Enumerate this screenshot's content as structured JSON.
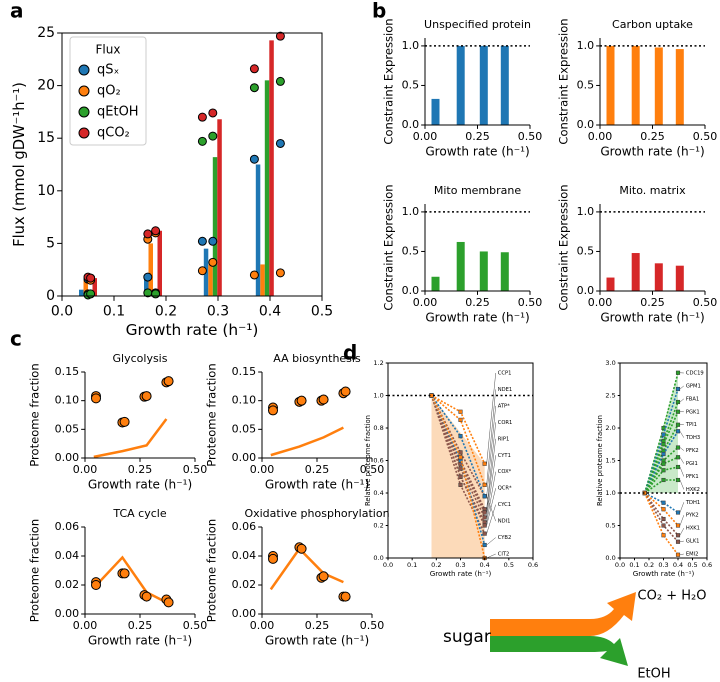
{
  "panel_labels": [
    "a",
    "b",
    "c",
    "d"
  ],
  "diagram": {
    "input": "sugar",
    "outputs": [
      "CO₂ + H₂O",
      "EtOH"
    ]
  },
  "chart_data": [
    {
      "type": "bar",
      "xlabel": "Growth rate (h⁻¹)",
      "ylabel": "Flux (mmol gDW⁻¹h⁻¹)",
      "legend_title": "Flux",
      "legend": "upper left",
      "x": [
        0.05,
        0.175,
        0.29,
        0.39
      ],
      "xlim": [
        0,
        0.5
      ],
      "xticks": [
        {
          "value": 0,
          "label": "0.0"
        },
        0.1,
        0.2,
        0.3,
        0.4,
        0.5
      ],
      "ylim": [
        0,
        25
      ],
      "yticks": [
        0,
        5,
        10,
        15,
        20,
        25
      ],
      "series": [
        {
          "name": "qSₓ",
          "color": "#1f77b4",
          "values": [
            0.6,
            1.8,
            4.5,
            12.5
          ],
          "points_x": [
            0.05,
            0.055,
            0.165,
            0.18,
            0.27,
            0.29,
            0.37,
            0.42
          ],
          "points_y": [
            1.6,
            1.7,
            1.8,
            0.3,
            5.2,
            5.2,
            13.0,
            14.5
          ]
        },
        {
          "name": "qO₂",
          "color": "#ff7f0e",
          "values": [
            1.5,
            5.0,
            3.0,
            3.0
          ],
          "points_x": [
            0.05,
            0.055,
            0.165,
            0.18,
            0.27,
            0.29,
            0.37,
            0.42
          ],
          "points_y": [
            0.2,
            1.5,
            5.4,
            6.0,
            2.4,
            3.2,
            2.0,
            2.2
          ]
        },
        {
          "name": "qEtOH",
          "color": "#2ca02c",
          "values": [
            0.1,
            0.2,
            13.2,
            20.5
          ],
          "points_x": [
            0.05,
            0.055,
            0.165,
            0.18,
            0.27,
            0.29,
            0.37,
            0.42
          ],
          "points_y": [
            0.1,
            0.2,
            0.3,
            0.2,
            14.7,
            15.2,
            19.8,
            20.4
          ]
        },
        {
          "name": "qCO₂",
          "color": "#d62728",
          "values": [
            1.7,
            6.2,
            16.8,
            24.3
          ],
          "points_x": [
            0.05,
            0.055,
            0.165,
            0.18,
            0.27,
            0.29,
            0.37,
            0.42
          ],
          "points_y": [
            1.8,
            1.7,
            5.9,
            6.2,
            17.0,
            17.4,
            21.6,
            24.7
          ]
        }
      ]
    },
    {
      "type": "bar",
      "title": "Unspecified protein",
      "xlabel": "Growth rate (h⁻¹)",
      "ylabel": "Constraint Expression",
      "x": [
        0.05,
        0.17,
        0.28,
        0.38
      ],
      "values": [
        0.33,
        1.0,
        1.0,
        1.0
      ],
      "color": "#1f77b4",
      "xlim": [
        0,
        0.5
      ],
      "xticks": [
        {
          "value": 0,
          "label": "0.00"
        },
        0.25,
        {
          "value": 0.5,
          "label": "0.50"
        }
      ],
      "ylim": [
        0,
        1.1
      ],
      "yticks": [
        {
          "value": 0,
          "label": "0.0"
        },
        0.5,
        {
          "value": 1,
          "label": "1.0"
        }
      ],
      "hline": 1
    },
    {
      "type": "bar",
      "title": "Carbon uptake",
      "xlabel": "Growth rate (h⁻¹)",
      "ylabel": "Constraint Expression",
      "x": [
        0.05,
        0.17,
        0.28,
        0.38
      ],
      "values": [
        1.0,
        1.0,
        0.98,
        0.96
      ],
      "color": "#ff7f0e",
      "xlim": [
        0,
        0.5
      ],
      "xticks": [
        {
          "value": 0,
          "label": "0.00"
        },
        0.25,
        {
          "value": 0.5,
          "label": "0.50"
        }
      ],
      "ylim": [
        0,
        1.1
      ],
      "yticks": [
        {
          "value": 0,
          "label": "0.0"
        },
        0.5,
        {
          "value": 1,
          "label": "1.0"
        }
      ],
      "hline": 1
    },
    {
      "type": "bar",
      "title": "Mito  membrane",
      "xlabel": "Growth rate (h⁻¹)",
      "ylabel": "Constraint Expression",
      "x": [
        0.05,
        0.17,
        0.28,
        0.38
      ],
      "values": [
        0.18,
        0.62,
        0.5,
        0.49
      ],
      "color": "#2ca02c",
      "xlim": [
        0,
        0.5
      ],
      "xticks": [
        {
          "value": 0,
          "label": "0.00"
        },
        0.25,
        {
          "value": 0.5,
          "label": "0.50"
        }
      ],
      "ylim": [
        0,
        1.1
      ],
      "yticks": [
        {
          "value": 0,
          "label": "0.0"
        },
        0.5,
        {
          "value": 1,
          "label": "1.0"
        }
      ],
      "hline": 1
    },
    {
      "type": "bar",
      "title": "Mito. matrix",
      "xlabel": "Growth rate (h⁻¹)",
      "ylabel": "Constraint Expression",
      "x": [
        0.05,
        0.17,
        0.28,
        0.38
      ],
      "values": [
        0.17,
        0.48,
        0.35,
        0.32
      ],
      "color": "#d62728",
      "xlim": [
        0,
        0.5
      ],
      "xticks": [
        {
          "value": 0,
          "label": "0.00"
        },
        0.25,
        {
          "value": 0.5,
          "label": "0.50"
        }
      ],
      "ylim": [
        0,
        1.1
      ],
      "yticks": [
        {
          "value": 0,
          "label": "0.0"
        },
        0.5,
        {
          "value": 1,
          "label": "1.0"
        }
      ],
      "hline": 1
    },
    {
      "type": "line",
      "title": "Glycolysis",
      "xlabel": "Growth rate (h⁻¹)",
      "ylabel": "Proteome fraction",
      "x": [
        0.04,
        0.17,
        0.28,
        0.37
      ],
      "values": [
        0.002,
        0.012,
        0.022,
        0.068
      ],
      "color": "#ff7f0e",
      "points_x": [
        0.05,
        0.05,
        0.17,
        0.18,
        0.27,
        0.28,
        0.37,
        0.38
      ],
      "points_y": [
        0.108,
        0.104,
        0.062,
        0.063,
        0.107,
        0.108,
        0.132,
        0.134
      ],
      "xlim": [
        0,
        0.5
      ],
      "xticks": [
        {
          "value": 0,
          "label": "0.00"
        },
        0.25,
        {
          "value": 0.5,
          "label": "0.50"
        }
      ],
      "ylim": [
        0,
        0.15
      ],
      "yticks": [
        {
          "value": 0,
          "label": "0.00"
        },
        0.05,
        {
          "value": 0.1,
          "label": "0.10"
        },
        0.15
      ]
    },
    {
      "type": "line",
      "title": "AA biosynthesis",
      "xlabel": "Growth rate (h⁻¹)",
      "ylabel": "Proteome fraction",
      "x": [
        0.04,
        0.17,
        0.28,
        0.37
      ],
      "values": [
        0.005,
        0.02,
        0.036,
        0.053
      ],
      "color": "#ff7f0e",
      "points_x": [
        0.05,
        0.05,
        0.17,
        0.18,
        0.27,
        0.28,
        0.37,
        0.38
      ],
      "points_y": [
        0.088,
        0.083,
        0.098,
        0.1,
        0.1,
        0.102,
        0.113,
        0.116
      ],
      "xlim": [
        0,
        0.5
      ],
      "xticks": [
        {
          "value": 0,
          "label": "0.00"
        },
        0.25,
        {
          "value": 0.5,
          "label": "0.50"
        }
      ],
      "ylim": [
        0,
        0.15
      ],
      "yticks": [
        {
          "value": 0,
          "label": "0.00"
        },
        0.05,
        {
          "value": 0.1,
          "label": "0.10"
        },
        0.15
      ]
    },
    {
      "type": "line",
      "title": "TCA cycle",
      "xlabel": "Growth rate (h⁻¹)",
      "ylabel": "Proteome fraction",
      "x": [
        0.04,
        0.17,
        0.28,
        0.37
      ],
      "values": [
        0.018,
        0.039,
        0.015,
        0.008
      ],
      "color": "#ff7f0e",
      "points_x": [
        0.05,
        0.05,
        0.17,
        0.18,
        0.27,
        0.28,
        0.37,
        0.38
      ],
      "points_y": [
        0.022,
        0.02,
        0.028,
        0.028,
        0.013,
        0.012,
        0.01,
        0.008
      ],
      "xlim": [
        0,
        0.5
      ],
      "xticks": [
        {
          "value": 0,
          "label": "0.00"
        },
        0.25,
        {
          "value": 0.5,
          "label": "0.50"
        }
      ],
      "ylim": [
        0,
        0.06
      ],
      "yticks": [
        {
          "value": 0,
          "label": "0.00"
        },
        0.02,
        0.04,
        0.06
      ]
    },
    {
      "type": "line",
      "title": "Oxidative phosphorylation",
      "xlabel": "Growth rate (h⁻¹)",
      "ylabel": "Proteome fraction",
      "x": [
        0.04,
        0.17,
        0.28,
        0.37
      ],
      "values": [
        0.017,
        0.045,
        0.028,
        0.022
      ],
      "color": "#ff7f0e",
      "points_x": [
        0.05,
        0.05,
        0.17,
        0.18,
        0.27,
        0.28,
        0.37,
        0.38
      ],
      "points_y": [
        0.04,
        0.038,
        0.046,
        0.045,
        0.025,
        0.026,
        0.012,
        0.012
      ],
      "xlim": [
        0,
        0.5
      ],
      "xticks": [
        {
          "value": 0,
          "label": "0.00"
        },
        0.25,
        {
          "value": 0.5,
          "label": "0.50"
        }
      ],
      "ylim": [
        0,
        0.06
      ],
      "yticks": [
        {
          "value": 0,
          "label": "0.00"
        },
        0.02,
        0.04,
        0.06
      ]
    },
    {
      "type": "line",
      "xlabel": "Growth rate (h⁻¹)",
      "ylabel": "Relative proteome fraction",
      "x": [
        0.18,
        0.3,
        0.4
      ],
      "xlim": [
        0,
        0.6
      ],
      "xticks": [
        {
          "value": 0,
          "label": "0.0"
        },
        0.1,
        0.2,
        0.3,
        0.4,
        0.5,
        0.6
      ],
      "ylim": [
        0,
        1.2
      ],
      "yticks": [
        {
          "value": 0,
          "label": "0.0"
        },
        0.2,
        0.4,
        0.6,
        0.8,
        {
          "value": 1,
          "label": "1.0"
        },
        1.2
      ],
      "hline": 1,
      "shade_color": "#fbd3ad",
      "series": [
        {
          "name": "CCP1",
          "color": "#ff7f0e",
          "values": [
            1,
            0.9,
            0.58
          ]
        },
        {
          "name": "NDE1",
          "color": "#ff7f0e",
          "values": [
            1,
            0.85,
            0.45
          ]
        },
        {
          "name": "ATP*",
          "color": "#8c564b",
          "values": [
            1,
            0.65,
            0.38
          ]
        },
        {
          "name": "COR1",
          "color": "#8c564b",
          "values": [
            1,
            0.6,
            0.3
          ]
        },
        {
          "name": "RIP1",
          "color": "#8c564b",
          "values": [
            1,
            0.58,
            0.28
          ]
        },
        {
          "name": "CYT1",
          "color": "#8c564b",
          "values": [
            1,
            0.55,
            0.25
          ]
        },
        {
          "name": "COX*",
          "color": "#8c564b",
          "values": [
            1,
            0.5,
            0.22
          ]
        },
        {
          "name": "QCR*",
          "color": "#8c564b",
          "values": [
            1,
            0.5,
            0.2
          ]
        },
        {
          "name": "CYC1",
          "color": "#8c564b",
          "values": [
            1,
            0.45,
            0.15
          ]
        },
        {
          "name": "NDI1",
          "color": "#1f77b4",
          "values": [
            1,
            0.75,
            0.38
          ]
        },
        {
          "name": "CYB2",
          "color": "#1f77b4",
          "values": [
            1,
            0.6,
            0.08
          ]
        },
        {
          "name": "CIT2",
          "color": "#ff7f0e",
          "values": [
            1,
            0.62,
            0.0
          ]
        }
      ]
    },
    {
      "type": "line",
      "xlabel": "Growth rate (h⁻¹)",
      "ylabel": "Relative proteome fraction",
      "x": [
        0.17,
        0.3,
        0.4
      ],
      "xlim": [
        0,
        0.6
      ],
      "xticks": [
        {
          "value": 0,
          "label": "0.0"
        },
        0.1,
        0.2,
        0.3,
        0.4,
        0.5,
        0.6
      ],
      "ylim": [
        0,
        3.0
      ],
      "yticks": [
        {
          "value": 0,
          "label": "0.0"
        },
        0.5,
        {
          "value": 1,
          "label": "1.0"
        },
        1.5,
        {
          "value": 2,
          "label": "2.0"
        },
        2.5,
        {
          "value": 3,
          "label": "3.0"
        }
      ],
      "hline": 1,
      "shade_color": "#bfe5bf",
      "series": [
        {
          "name": "CDC19",
          "color": "#2ca02c",
          "values": [
            1,
            2.0,
            2.85
          ]
        },
        {
          "name": "GPM1",
          "color": "#1f77b4",
          "values": [
            1,
            1.9,
            2.6
          ]
        },
        {
          "name": "FBA1",
          "color": "#2ca02c",
          "values": [
            1,
            1.8,
            2.4
          ]
        },
        {
          "name": "PGK1",
          "color": "#2ca02c",
          "values": [
            1,
            1.75,
            2.25
          ]
        },
        {
          "name": "TPI1",
          "color": "#2ca02c",
          "values": [
            1,
            1.65,
            2.05
          ]
        },
        {
          "name": "TDH3",
          "color": "#1f77b4",
          "values": [
            1,
            1.6,
            1.95
          ]
        },
        {
          "name": "PFK2",
          "color": "#2ca02c",
          "values": [
            1,
            1.5,
            1.7
          ]
        },
        {
          "name": "PGI1",
          "color": "#2ca02c",
          "values": [
            1,
            1.45,
            1.55
          ]
        },
        {
          "name": "PFK1",
          "color": "#2ca02c",
          "values": [
            1,
            1.35,
            1.4
          ]
        },
        {
          "name": "HXK2",
          "color": "#2ca02c",
          "values": [
            1,
            1.2,
            1.2
          ]
        },
        {
          "name": "TDH1",
          "color": "#1f77b4",
          "values": [
            1,
            0.85,
            0.7
          ]
        },
        {
          "name": "PYK2",
          "color": "#ff7f0e",
          "values": [
            1,
            0.75,
            0.5
          ]
        },
        {
          "name": "HXK1",
          "color": "#8c564b",
          "values": [
            1,
            0.6,
            0.35
          ]
        },
        {
          "name": "GLK1",
          "color": "#8c564b",
          "values": [
            1,
            0.5,
            0.25
          ]
        },
        {
          "name": "EMI2",
          "color": "#ff7f0e",
          "values": [
            1,
            0.35,
            0.05
          ]
        }
      ]
    }
  ]
}
